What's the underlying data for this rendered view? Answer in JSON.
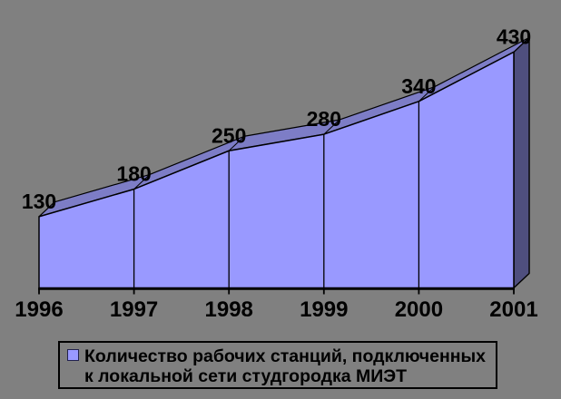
{
  "chart_data": {
    "type": "area",
    "subtype": "3d-area",
    "categories": [
      "1996",
      "1997",
      "1998",
      "1999",
      "2000",
      "2001"
    ],
    "series": [
      {
        "name": "Количество рабочих станций, подключенных к локальной сети студгородка МИЭТ",
        "values": [
          130,
          180,
          250,
          280,
          340,
          430
        ]
      }
    ],
    "data_labels": [
      "130",
      "180",
      "250",
      "280",
      "340",
      "430"
    ],
    "baseline": 0,
    "grid": "off",
    "y_axis_visible": false,
    "legend_position": "bottom",
    "colors": {
      "background": "#808080",
      "area_front": "#9999FF",
      "area_top": "#7D7DC6",
      "area_side": "#4F4F7E",
      "outline": "#000000",
      "text": "#000000"
    }
  },
  "legend": {
    "marker_color": "#9999FF",
    "label_lines": [
      "Количество рабочих станций, подключенных",
      "к локальной сети студгородка МИЭТ"
    ]
  }
}
